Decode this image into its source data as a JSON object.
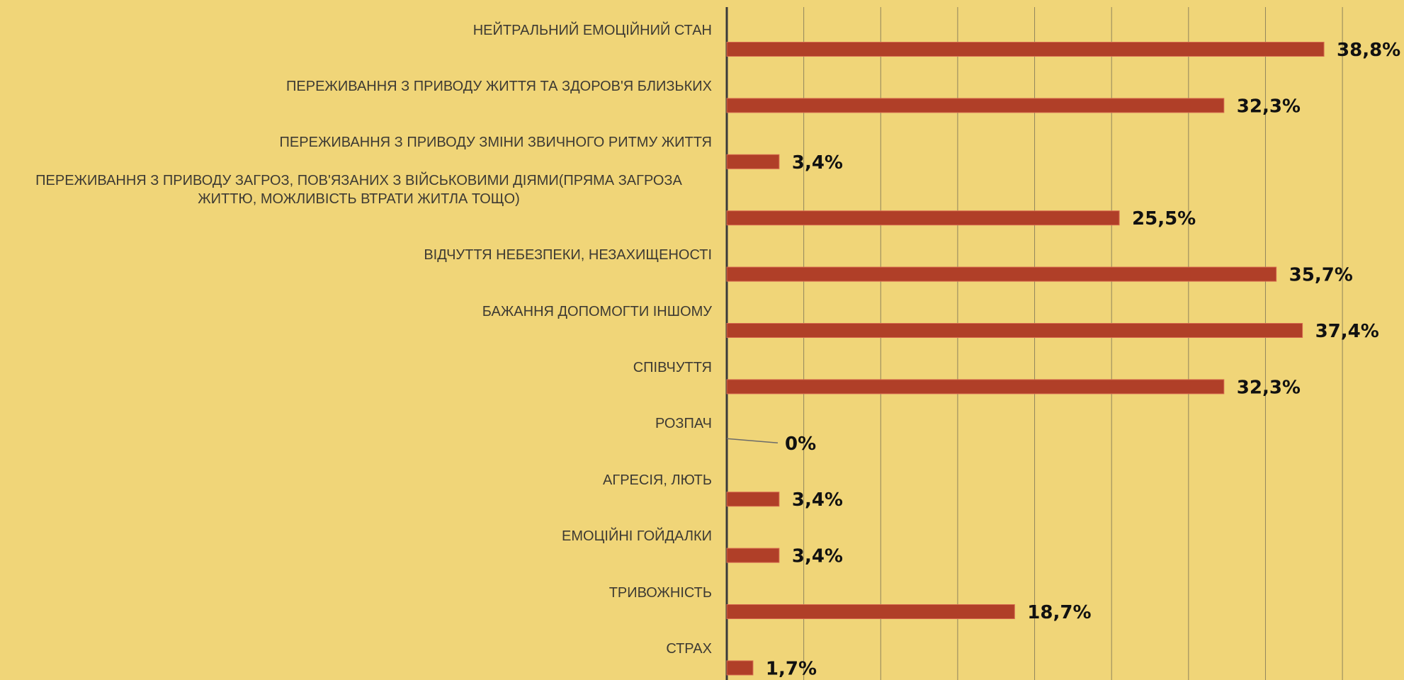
{
  "chart_data": {
    "type": "bar",
    "orientation": "horizontal",
    "categories": [
      "НЕЙТРАЛЬНИЙ ЕМОЦІЙНИЙ СТАН",
      "ПЕРЕЖИВАННЯ З ПРИВОДУ ЖИТТЯ ТА ЗДОРОВ'Я БЛИЗЬКИХ",
      "ПЕРЕЖИВАННЯ З ПРИВОДУ ЗМІНИ ЗВИЧНОГО РИТМУ ЖИТТЯ",
      "ПЕРЕЖИВАННЯ З ПРИВОДУ ЗАГРОЗ, ПОВ'ЯЗАНИХ З ВІЙСЬКОВИМИ ДІЯМИ(ПРЯМА ЗАГРОЗА ЖИТТЮ, МОЖЛИВІСТЬ ВТРАТИ ЖИТЛА ТОЩО)",
      "ВІДЧУТТЯ НЕБЕЗПЕКИ, НЕЗАХИЩЕНОСТІ",
      "БАЖАННЯ ДОПОМОГТИ ІНШОМУ",
      "СПІВЧУТТЯ",
      "РОЗПАЧ",
      "АГРЕСІЯ, ЛЮТЬ",
      "ЕМОЦІЙНІ ГОЙДАЛКИ",
      "ТРИВОЖНІСТЬ",
      "СТРАХ"
    ],
    "values": [
      38.8,
      32.3,
      3.4,
      25.5,
      35.7,
      37.4,
      32.3,
      0,
      3.4,
      3.4,
      18.7,
      1.7
    ],
    "value_labels": [
      "38,8%",
      "32,3%",
      "3,4%",
      "25,5%",
      "35,7%",
      "37,4%",
      "32,3%",
      "0%",
      "3,4%",
      "3,4%",
      "18,7%",
      "1,7%"
    ],
    "color": "#b03f28",
    "xlim": [
      0,
      44
    ],
    "xticks": [
      0,
      5,
      10,
      15,
      20,
      25,
      30,
      35,
      40
    ],
    "grid": true
  }
}
